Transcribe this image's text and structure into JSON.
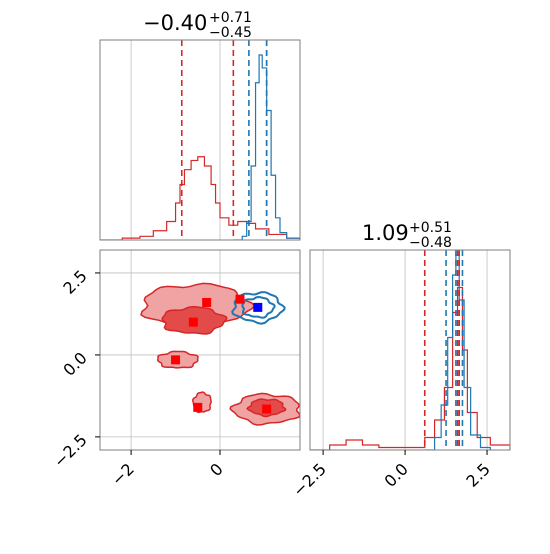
{
  "figure": {
    "top_title": {
      "main": "−0.40",
      "sup": "+0.71",
      "sub": "−0.45"
    },
    "right_title": {
      "main": "1.09",
      "sup": "+0.51",
      "sub": "−0.48"
    }
  },
  "chart_data": {
    "type": "corner",
    "parameters": 2,
    "ranges": {
      "p1": [
        -2.7,
        1.8
      ],
      "p2": [
        -2.9,
        3.2
      ]
    },
    "ticks": {
      "p1": [
        {
          "v": -2,
          "label": "−2"
        },
        {
          "v": 0,
          "label": "0"
        }
      ],
      "p2": [
        {
          "v": -2.5,
          "label": "−2.5"
        },
        {
          "v": 0,
          "label": "0.0"
        },
        {
          "v": 2.5,
          "label": "2.5"
        }
      ]
    },
    "colors": {
      "red": "#d62728",
      "blue": "#1f77b4",
      "red_fill": "#f0a3a3",
      "red_fill_dark": "#e34b4b"
    },
    "marginal_p1": {
      "red_quantiles": [
        -0.86,
        0.3
      ],
      "blue_quantiles": [
        0.65,
        1.05,
        1.05
      ],
      "red_hist": [
        {
          "x": -2.7,
          "y": 0.0
        },
        {
          "x": -2.2,
          "y": 0.01
        },
        {
          "x": -1.8,
          "y": 0.02
        },
        {
          "x": -1.5,
          "y": 0.05
        },
        {
          "x": -1.2,
          "y": 0.1
        },
        {
          "x": -1.0,
          "y": 0.2
        },
        {
          "x": -0.9,
          "y": 0.3
        },
        {
          "x": -0.8,
          "y": 0.38
        },
        {
          "x": -0.65,
          "y": 0.43
        },
        {
          "x": -0.5,
          "y": 0.45
        },
        {
          "x": -0.35,
          "y": 0.4
        },
        {
          "x": -0.2,
          "y": 0.3
        },
        {
          "x": -0.1,
          "y": 0.2
        },
        {
          "x": 0.0,
          "y": 0.12
        },
        {
          "x": 0.2,
          "y": 0.08
        },
        {
          "x": 0.4,
          "y": 0.1
        },
        {
          "x": 0.6,
          "y": 0.09
        },
        {
          "x": 0.8,
          "y": 0.06
        },
        {
          "x": 1.1,
          "y": 0.03
        },
        {
          "x": 1.5,
          "y": 0.01
        },
        {
          "x": 1.8,
          "y": 0.0
        }
      ],
      "blue_hist": [
        {
          "x": 0.3,
          "y": 0.0
        },
        {
          "x": 0.5,
          "y": 0.02
        },
        {
          "x": 0.6,
          "y": 0.1
        },
        {
          "x": 0.7,
          "y": 0.4
        },
        {
          "x": 0.8,
          "y": 0.85
        },
        {
          "x": 0.88,
          "y": 1.0
        },
        {
          "x": 0.95,
          "y": 0.93
        },
        {
          "x": 1.05,
          "y": 0.7
        },
        {
          "x": 1.15,
          "y": 0.35
        },
        {
          "x": 1.25,
          "y": 0.12
        },
        {
          "x": 1.35,
          "y": 0.04
        },
        {
          "x": 1.5,
          "y": 0.01
        },
        {
          "x": 1.8,
          "y": 0.0
        }
      ]
    },
    "marginal_p2": {
      "red_quantiles": [
        0.6,
        1.6,
        1.65
      ],
      "blue_quantiles": [
        1.25,
        1.55,
        1.75
      ],
      "red_hist": [
        {
          "x": -2.9,
          "y": 0.0
        },
        {
          "x": -2.3,
          "y": 0.02
        },
        {
          "x": -1.8,
          "y": 0.04
        },
        {
          "x": -1.3,
          "y": 0.02
        },
        {
          "x": -0.8,
          "y": 0.01
        },
        {
          "x": 0.0,
          "y": 0.01
        },
        {
          "x": 0.6,
          "y": 0.05
        },
        {
          "x": 0.9,
          "y": 0.12
        },
        {
          "x": 1.2,
          "y": 0.25
        },
        {
          "x": 1.45,
          "y": 0.55
        },
        {
          "x": 1.6,
          "y": 0.65
        },
        {
          "x": 1.75,
          "y": 0.4
        },
        {
          "x": 1.9,
          "y": 0.15
        },
        {
          "x": 2.2,
          "y": 0.05
        },
        {
          "x": 2.6,
          "y": 0.02
        },
        {
          "x": 3.2,
          "y": 0.0
        }
      ],
      "blue_hist": [
        {
          "x": 0.6,
          "y": 0.0
        },
        {
          "x": 0.9,
          "y": 0.05
        },
        {
          "x": 1.1,
          "y": 0.18
        },
        {
          "x": 1.3,
          "y": 0.45
        },
        {
          "x": 1.45,
          "y": 0.7
        },
        {
          "x": 1.55,
          "y": 0.78
        },
        {
          "x": 1.65,
          "y": 0.6
        },
        {
          "x": 1.8,
          "y": 0.25
        },
        {
          "x": 2.0,
          "y": 0.06
        },
        {
          "x": 2.3,
          "y": 0.01
        },
        {
          "x": 2.6,
          "y": 0.0
        }
      ]
    },
    "joint": {
      "red_contours": [
        {
          "level": "outer",
          "cx": -0.55,
          "cy": 1.5,
          "rx": 1.2,
          "ry": 0.65
        },
        {
          "level": "inner",
          "cx": -0.6,
          "cy": 1.05,
          "rx": 0.7,
          "ry": 0.4
        },
        {
          "level": "outer",
          "cx": -0.95,
          "cy": -0.15,
          "rx": 0.45,
          "ry": 0.25
        },
        {
          "level": "outer",
          "cx": -0.4,
          "cy": -1.45,
          "rx": 0.2,
          "ry": 0.3
        },
        {
          "level": "outer",
          "cx": 1.05,
          "cy": -1.65,
          "rx": 0.75,
          "ry": 0.45
        },
        {
          "level": "inner",
          "cx": 1.05,
          "cy": -1.6,
          "rx": 0.4,
          "ry": 0.25
        }
      ],
      "blue_contours": [
        {
          "cx": 0.85,
          "cy": 1.45,
          "rx": 0.55,
          "ry": 0.45
        },
        {
          "cx": 0.85,
          "cy": 1.45,
          "rx": 0.35,
          "ry": 0.3
        }
      ],
      "red_markers": [
        {
          "x": -0.3,
          "y": 1.6
        },
        {
          "x": 0.45,
          "y": 1.7
        },
        {
          "x": -0.6,
          "y": 1.0
        },
        {
          "x": -1.0,
          "y": -0.15
        },
        {
          "x": -0.5,
          "y": -1.6
        },
        {
          "x": 1.05,
          "y": -1.65
        }
      ],
      "blue_markers": [
        {
          "x": 0.85,
          "y": 1.45
        }
      ]
    }
  }
}
